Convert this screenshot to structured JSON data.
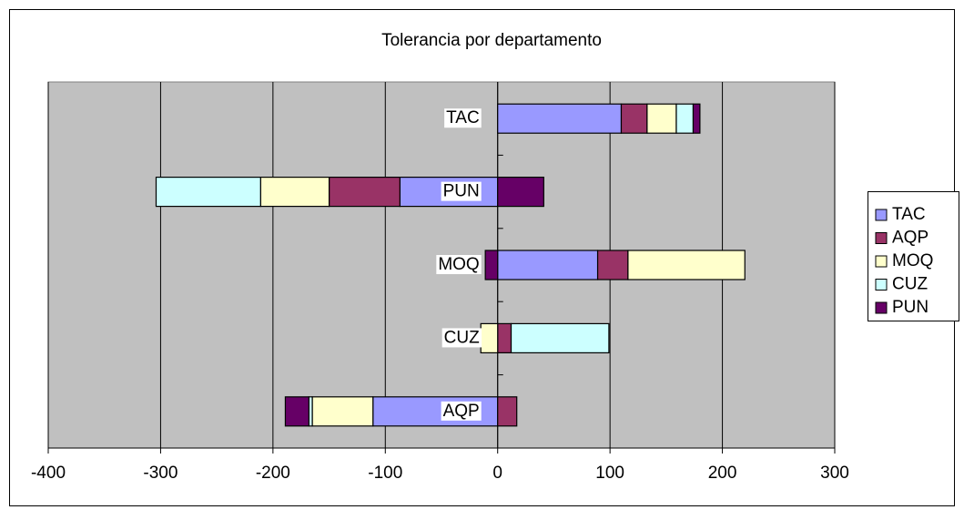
{
  "chart_data": {
    "type": "stacked_barh",
    "title": "Tolerancia por departamento",
    "categories": [
      "AQP",
      "CUZ",
      "MOQ",
      "PUN",
      "TAC"
    ],
    "series": [
      {
        "name": "TAC",
        "color": "#9999ff",
        "values": [
          -111,
          0,
          89,
          -87,
          110
        ]
      },
      {
        "name": "AQP",
        "color": "#993366",
        "values": [
          17,
          12,
          27,
          -63,
          23
        ]
      },
      {
        "name": "MOQ",
        "color": "#ffffcc",
        "values": [
          -54,
          -15,
          104,
          -61,
          26
        ]
      },
      {
        "name": "CUZ",
        "color": "#ccffff",
        "values": [
          -3,
          87,
          0,
          -93,
          15
        ]
      },
      {
        "name": "PUN",
        "color": "#660066",
        "values": [
          -21,
          0,
          -11,
          41,
          6
        ]
      }
    ],
    "xlim": [
      -400,
      300
    ],
    "xticks": [
      -400,
      -300,
      -200,
      -100,
      0,
      100,
      200,
      300
    ],
    "grid": true,
    "legend": "right",
    "plot_background": "#c0c0c0"
  }
}
